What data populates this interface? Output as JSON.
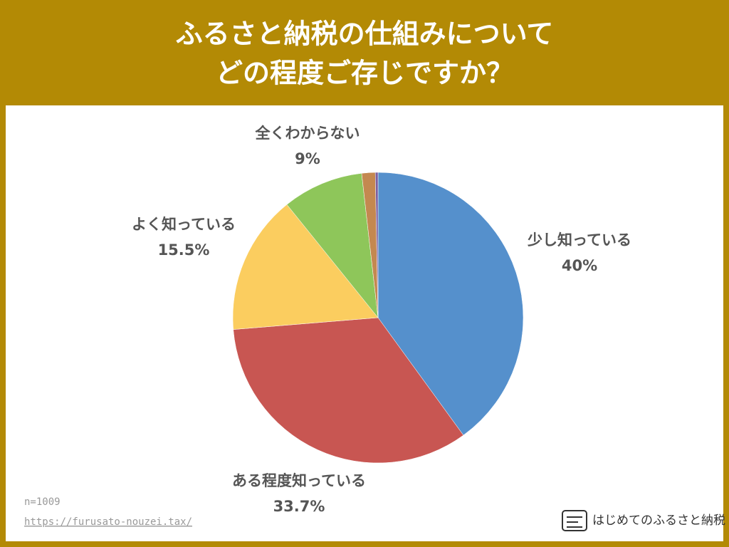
{
  "chart_data": {
    "type": "pie",
    "title": [
      "ふるさと納税の仕組みについて",
      "どの程度ご存じですか？"
    ],
    "categories": [
      "少し知っている",
      "ある程度知っている",
      "よく知っている",
      "全くわからない",
      null,
      null
    ],
    "values": [
      40,
      33.7,
      15.5,
      9,
      1.5,
      0.3
    ],
    "value_labels": [
      "40%",
      "33.7%",
      "15.5%",
      "9%",
      null,
      null
    ],
    "colors": [
      "#5590cc",
      "#c85652",
      "#fbcd5f",
      "#8ec65a",
      "#c48850",
      "#7b5fa0"
    ],
    "note": "n=1009",
    "source": "https://furusato-nouzei.tax/",
    "brand": "はじめてのふるさと納税"
  }
}
